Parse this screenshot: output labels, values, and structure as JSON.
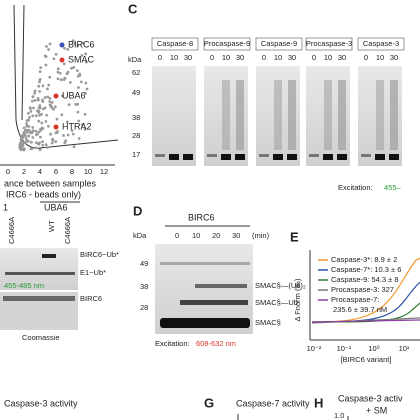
{
  "panel_a": {
    "labels": [
      "BIRC6",
      "SMAC",
      "UBA6",
      "HTRA2"
    ],
    "xticks": [
      "0",
      "2",
      "4",
      "6",
      "8",
      "10",
      "12"
    ],
    "xlabel": [
      "ance between samples",
      "IRC6 - beads only)"
    ]
  },
  "panel_c": {
    "letter": "C",
    "groups": [
      "Caspase-8",
      "Procaspase-9",
      "Caspase-9",
      "Procaspase-3",
      "Caspase-3"
    ],
    "lanes": [
      "0",
      "10",
      "30"
    ],
    "unit": "kDa",
    "markers": [
      "62",
      "49",
      "38",
      "28",
      "17"
    ],
    "excitation": "Excitation:",
    "wavelength": "455–"
  },
  "panel_b": {
    "fragment": "1",
    "group": "UBA6",
    "lanes": [
      "C4666A",
      "WT",
      "C4666A"
    ],
    "bands": [
      "BIRC6~Ub*",
      "E1~Ub*"
    ],
    "wavelength": "455-485 nm",
    "stain_band": "BIRC6",
    "stain": "Coomassie"
  },
  "panel_d": {
    "letter": "D",
    "enzyme": "BIRC6",
    "unit": "kDa",
    "times": [
      "0",
      "10",
      "20",
      "30",
      "(min)"
    ],
    "markers": [
      "49",
      "38",
      "28"
    ],
    "bands": [
      "SMAC§—(Ub)₂",
      "SMAC§—Ub",
      "SMAC§"
    ],
    "excitation": "Excitation:",
    "wavelength": "608-632 nm"
  },
  "panel_e": {
    "letter": "E",
    "legend": [
      "Caspase-3*: 8.9 ± 2",
      "Caspase-7*: 10.3 ± 6",
      "Caspase-9: 54.3 ± 8",
      "Procaspase-3: 327",
      "Procaspase-7:",
      "235.6 ± 39.7 nM"
    ],
    "ylabel": "Δ Fnorm (‰)",
    "xticks": [
      "10⁻²",
      "10⁻¹",
      "10⁰",
      "10¹"
    ],
    "xlabel": "[BIRC6 variant]"
  },
  "bottom": {
    "f_title": "Caspase-3 activity",
    "g_letter": "G",
    "g_title": "Caspase-7 activity",
    "h_letter": "H",
    "h_title": "Caspase-3 activ",
    "h_sub": "+ SM",
    "h_tick": "1.0"
  }
}
